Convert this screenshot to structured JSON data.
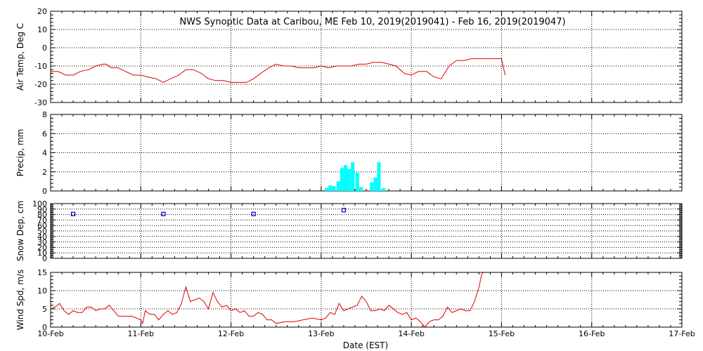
{
  "chart_data": {
    "title": "NWS Synoptic Data at Caribou, ME   Feb 10, 2019(2019041) - Feb 16, 2019(2019047)",
    "xlabel": "Date (EST)",
    "x_ticks": [
      "10-Feb",
      "11-Feb",
      "12-Feb",
      "13-Feb",
      "14-Feb",
      "15-Feb",
      "16-Feb",
      "17-Feb"
    ],
    "x_unit": "days since 10-Feb 00:00 EST",
    "x_range": [
      0,
      7
    ],
    "colors": {
      "temp": "#e00000",
      "precip": "#00ffff",
      "snow": "#0000c0",
      "wind": "#e00000",
      "grid": "#000000"
    },
    "panels": [
      {
        "id": "air_temp",
        "type": "line",
        "ylabel": "Air Temp, Deg C",
        "ylim": [
          -30,
          20
        ],
        "yticks": [
          20,
          10,
          0,
          -10,
          -20,
          -30
        ],
        "series": [
          {
            "x": [
              0,
              0.08,
              0.17,
              0.25,
              0.33,
              0.42,
              0.5,
              0.58,
              0.62,
              0.67,
              0.75,
              0.83,
              0.92,
              1.0,
              1.08,
              1.17,
              1.25,
              1.33,
              1.42,
              1.5,
              1.58,
              1.67,
              1.75,
              1.83,
              1.92,
              2.0,
              2.08,
              2.17,
              2.25,
              2.33,
              2.42,
              2.5,
              2.58,
              2.67,
              2.75,
              2.83,
              2.92,
              3.0,
              3.08,
              3.17,
              3.25,
              3.33,
              3.42,
              3.5,
              3.58,
              3.67,
              3.75,
              3.83,
              3.92,
              4.0,
              4.08,
              4.17,
              4.25,
              4.33,
              4.42,
              4.5,
              4.58,
              4.67,
              4.75,
              4.83,
              4.92,
              5.0,
              5.04
            ],
            "y": [
              -13,
              -13,
              -15,
              -15,
              -13,
              -12,
              -10,
              -9,
              -9,
              -11,
              -11,
              -13,
              -15,
              -15,
              -16,
              -17,
              -19,
              -17,
              -15,
              -12,
              -12,
              -14,
              -17,
              -18,
              -18,
              -19,
              -19,
              -19,
              -17,
              -14,
              -11,
              -9,
              -10,
              -10,
              -11,
              -11,
              -11,
              -10,
              -11,
              -10,
              -10,
              -10,
              -9,
              -9,
              -8,
              -8,
              -9,
              -10,
              -14,
              -15,
              -13,
              -13,
              -16,
              -17,
              -10,
              -7,
              -7,
              -6,
              -6,
              -6,
              -6,
              -6,
              -15
            ]
          }
        ]
      },
      {
        "id": "precip",
        "type": "bar",
        "ylabel": "Precip, mm",
        "ylim": [
          0,
          8
        ],
        "yticks": [
          8,
          6,
          4,
          2,
          0
        ],
        "bar_width_days": 0.04,
        "bars": [
          {
            "x": 3.04,
            "v": 0.3
          },
          {
            "x": 3.08,
            "v": 0.6
          },
          {
            "x": 3.12,
            "v": 0.5
          },
          {
            "x": 3.17,
            "v": 1.0
          },
          {
            "x": 3.21,
            "v": 2.4
          },
          {
            "x": 3.25,
            "v": 2.7
          },
          {
            "x": 3.29,
            "v": 2.3
          },
          {
            "x": 3.33,
            "v": 3.0
          },
          {
            "x": 3.38,
            "v": 1.9
          },
          {
            "x": 3.42,
            "v": 0.4
          },
          {
            "x": 3.54,
            "v": 0.9
          },
          {
            "x": 3.58,
            "v": 1.4
          },
          {
            "x": 3.62,
            "v": 3.0
          },
          {
            "x": 3.67,
            "v": 0.3
          }
        ]
      },
      {
        "id": "snow_depth",
        "type": "scatter",
        "ylabel": "Snow Dep, cm",
        "ylim": [
          0,
          100
        ],
        "yticks": [
          100,
          90,
          80,
          70,
          60,
          50,
          40,
          30,
          20,
          10,
          0
        ],
        "points": [
          {
            "x": 0.25,
            "y": 81
          },
          {
            "x": 1.25,
            "y": 81
          },
          {
            "x": 2.25,
            "y": 81
          },
          {
            "x": 3.25,
            "y": 88
          }
        ]
      },
      {
        "id": "wind_speed",
        "type": "line",
        "ylabel": "Wind Spd, m/s",
        "ylim": [
          0,
          15
        ],
        "yticks": [
          15,
          10,
          5,
          0
        ],
        "series": [
          {
            "x": [
              0,
              0.05,
              0.1,
              0.15,
              0.2,
              0.25,
              0.3,
              0.35,
              0.4,
              0.45,
              0.5,
              0.55,
              0.6,
              0.65,
              0.7,
              0.75,
              0.8,
              0.9,
              1.0,
              1.02,
              1.05,
              1.1,
              1.15,
              1.2,
              1.25,
              1.3,
              1.35,
              1.4,
              1.45,
              1.5,
              1.55,
              1.6,
              1.65,
              1.7,
              1.75,
              1.8,
              1.85,
              1.9,
              1.95,
              2.0,
              2.05,
              2.1,
              2.15,
              2.2,
              2.25,
              2.3,
              2.35,
              2.4,
              2.45,
              2.5,
              2.6,
              2.7,
              2.8,
              2.9,
              3.0,
              3.05,
              3.1,
              3.15,
              3.2,
              3.25,
              3.3,
              3.35,
              3.4,
              3.45,
              3.5,
              3.55,
              3.6,
              3.65,
              3.7,
              3.75,
              3.8,
              3.85,
              3.9,
              3.95,
              4.0,
              4.05,
              4.1,
              4.15,
              4.2,
              4.25,
              4.3,
              4.35,
              4.4,
              4.45,
              4.5,
              4.55,
              4.6,
              4.65,
              4.7,
              4.75,
              4.78,
              4.8
            ],
            "y": [
              5,
              5.5,
              6.5,
              4.5,
              3.5,
              4.5,
              4,
              4,
              5.5,
              5.5,
              4.5,
              5,
              5,
              6,
              4.5,
              3,
              3,
              3,
              2,
              1,
              4.5,
              3.5,
              3.5,
              2,
              3.5,
              4.5,
              3.5,
              4,
              6.5,
              11,
              7,
              7.5,
              8,
              7,
              5,
              9.5,
              7,
              5.5,
              6,
              4.5,
              5,
              4,
              4.5,
              3,
              3,
              4,
              3.5,
              2,
              2,
              1,
              1.5,
              1.5,
              2,
              2.5,
              2,
              2.5,
              4,
              3.5,
              6.5,
              4.5,
              5,
              5.5,
              6,
              8.5,
              7,
              4.5,
              4.5,
              5,
              4.5,
              6,
              5,
              4,
              3.5,
              4,
              2,
              2.5,
              1.5,
              0,
              1.5,
              2,
              2,
              3,
              5.5,
              4,
              4.5,
              5,
              4.5,
              4.5,
              7,
              11,
              14.5,
              16
            ]
          }
        ]
      }
    ]
  }
}
